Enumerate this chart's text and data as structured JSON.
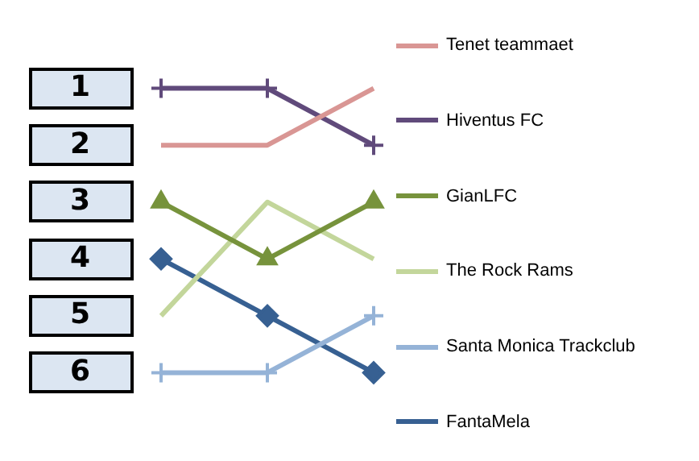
{
  "chart_data": {
    "type": "line",
    "categories": [
      null,
      null,
      null
    ],
    "series": [
      {
        "name": "Tenet teammaet",
        "color": "#d99694",
        "values": [
          2,
          2,
          1
        ],
        "marker": "none"
      },
      {
        "name": "Hiventus FC",
        "color": "#604a7b",
        "values": [
          1,
          1,
          2
        ],
        "marker": "cross"
      },
      {
        "name": "GianLFC",
        "color": "#77933c",
        "values": [
          3,
          4,
          3
        ],
        "marker": "triangle"
      },
      {
        "name": "The Rock Rams",
        "color": "#c3d69b",
        "values": [
          5,
          3,
          4
        ],
        "marker": "none"
      },
      {
        "name": "Santa Monica Trackclub",
        "color": "#95b3d7",
        "values": [
          6,
          6,
          5
        ],
        "marker": "cross"
      },
      {
        "name": "FantaMela",
        "color": "#376092",
        "values": [
          4,
          5,
          6
        ],
        "marker": "diamond"
      }
    ],
    "ylim": [
      6,
      1
    ],
    "yticks": [
      1,
      2,
      3,
      4,
      5,
      6
    ],
    "grid": false,
    "legend": "right",
    "tick_labels": "y"
  }
}
